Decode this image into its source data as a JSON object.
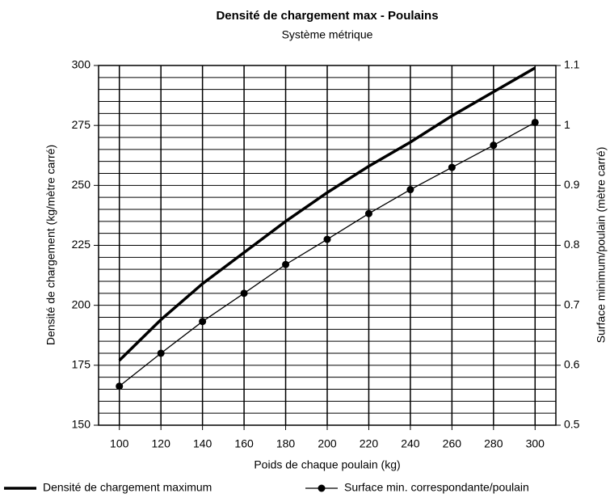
{
  "chart_data": {
    "type": "line",
    "title": "Densité de chargement max - Poulains",
    "subtitle": "Système métrique",
    "x_label": "Poids de chaque poulain (kg)",
    "y_label": "Densité de chargement (kg/mètre carré)",
    "y2_label": "Surface minimum/poulain (mètre carré)",
    "x": [
      100,
      120,
      140,
      160,
      180,
      200,
      220,
      240,
      260,
      280,
      300
    ],
    "series": [
      {
        "name": "Densité de chargement maximum",
        "color": "#000000",
        "axis": "y",
        "values": [
          177,
          194,
          209,
          222,
          235,
          247,
          258,
          268,
          279,
          289,
          299
        ]
      },
      {
        "name": "Surface min. correspondante/poulain",
        "color": "#000000",
        "axis": "y2",
        "marker": "circle",
        "values": [
          0.565,
          0.62,
          0.673,
          0.72,
          0.768,
          0.81,
          0.853,
          0.893,
          0.93,
          0.967,
          1.005
        ]
      }
    ],
    "xlim": [
      90,
      310
    ],
    "xticks": [
      100,
      120,
      140,
      160,
      180,
      200,
      220,
      240,
      260,
      280,
      300
    ],
    "ylim": [
      150,
      300
    ],
    "yticks": [
      150,
      175,
      200,
      225,
      250,
      275,
      300
    ],
    "minor_yticks": [
      155,
      160,
      165,
      170,
      180,
      185,
      190,
      195,
      205,
      210,
      215,
      220,
      230,
      235,
      240,
      245,
      255,
      260,
      265,
      270,
      280,
      285,
      290,
      295
    ],
    "y2lim": [
      0.5,
      1.1
    ],
    "y2ticks": [
      0.5,
      0.6,
      0.7,
      0.8,
      0.9,
      1,
      1.1
    ],
    "grid": true,
    "legend": "bottom"
  }
}
